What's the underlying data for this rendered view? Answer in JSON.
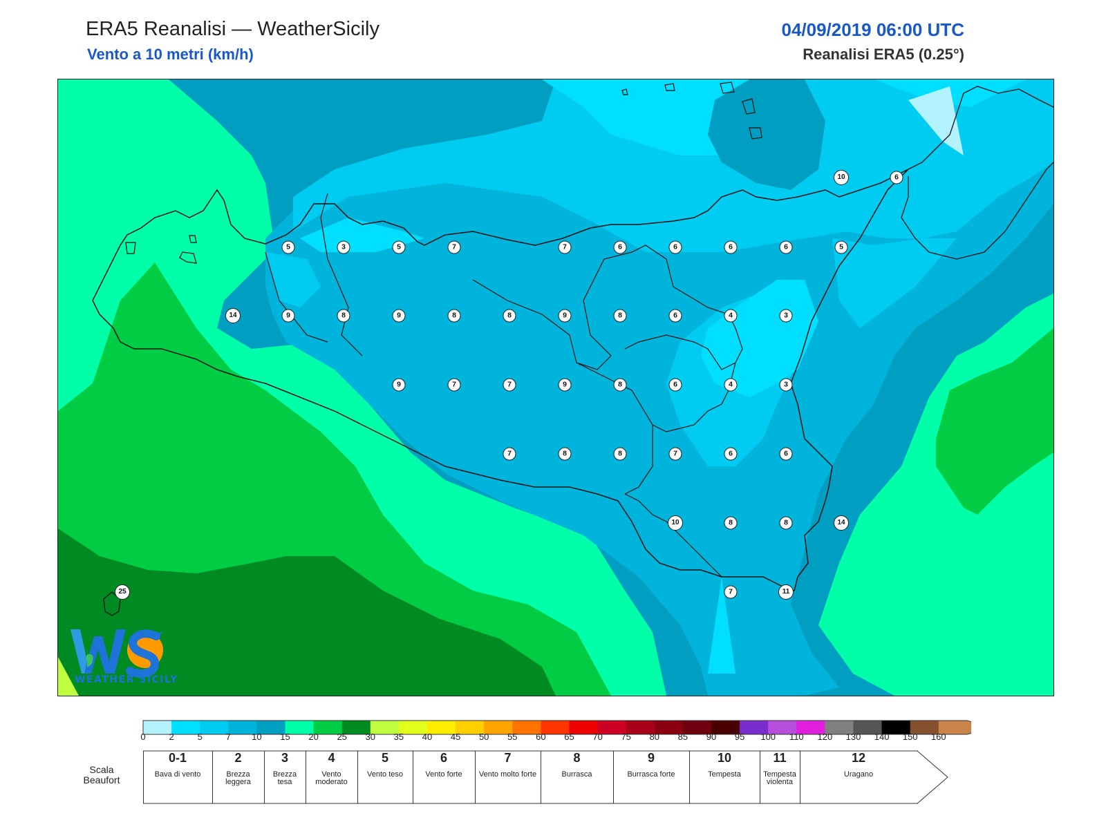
{
  "header": {
    "title": "ERA5 Reanalisi — WeatherSicily",
    "subtitle": "Vento a 10 metri (km/h)",
    "datetime": "04/09/2019 06:00 UTC",
    "source": "Reanalisi ERA5 (0.25°)"
  },
  "map": {
    "stations": [
      "5",
      "3",
      "5",
      "7",
      "7",
      "6",
      "6",
      "6",
      "6",
      "5",
      "14",
      "9",
      "8",
      "9",
      "8",
      "8",
      "9",
      "8",
      "6",
      "4",
      "3",
      "9",
      "7",
      "7",
      "9",
      "8",
      "6",
      "4",
      "3",
      "7",
      "8",
      "8",
      "7",
      "6",
      "6",
      "10",
      "8",
      "8",
      "14",
      "7",
      "11",
      "25",
      "10",
      "6"
    ]
  },
  "logo": {
    "text": "WEATHER SICILY"
  },
  "colorbar": {
    "ticks": [
      "0",
      "2",
      "5",
      "7",
      "10",
      "15",
      "20",
      "25",
      "30",
      "35",
      "40",
      "45",
      "50",
      "55",
      "60",
      "65",
      "70",
      "75",
      "80",
      "85",
      "90",
      "95",
      "100",
      "110",
      "120",
      "130",
      "140",
      "150",
      "160"
    ],
    "colors": [
      "#b3f3ff",
      "#00dfff",
      "#00cbf0",
      "#00b4dc",
      "#009ec0",
      "#00ffa8",
      "#00cc44",
      "#008a22",
      "#c0ff40",
      "#e0ff1a",
      "#ffee00",
      "#ffd000",
      "#ffa400",
      "#ff7300",
      "#ff3500",
      "#ee0000",
      "#cc0022",
      "#a80018",
      "#8a0010",
      "#6e0010",
      "#4a0000",
      "#7a2ccc",
      "#b84edc",
      "#e020dc",
      "#808080",
      "#555555",
      "#000000",
      "#86512e",
      "#c8844a"
    ]
  },
  "beaufort": {
    "label": "Scala Beaufort",
    "cells": [
      {
        "num": "0-1",
        "desc": "Bava di vento"
      },
      {
        "num": "2",
        "desc": "Brezza leggera"
      },
      {
        "num": "3",
        "desc": "Brezza tesa"
      },
      {
        "num": "4",
        "desc": "Vento moderato"
      },
      {
        "num": "5",
        "desc": "Vento teso"
      },
      {
        "num": "6",
        "desc": "Vento forte"
      },
      {
        "num": "7",
        "desc": "Vento molto forte"
      },
      {
        "num": "8",
        "desc": "Burrasca"
      },
      {
        "num": "9",
        "desc": "Burrasca forte"
      },
      {
        "num": "10",
        "desc": "Tempesta"
      },
      {
        "num": "11",
        "desc": "Tempesta violenta"
      },
      {
        "num": "12",
        "desc": "Uragano"
      }
    ]
  }
}
